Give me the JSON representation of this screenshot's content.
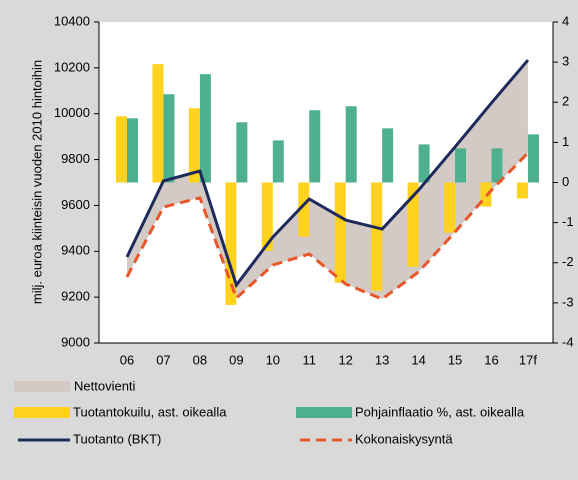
{
  "chart_data": {
    "type": "combo",
    "ylabel": "milj. euroa kiinteisin vuoden 2010 hintoihin",
    "categories": [
      "06",
      "07",
      "08",
      "09",
      "10",
      "11",
      "12",
      "13",
      "14",
      "15",
      "16",
      "17f"
    ],
    "ylim": [
      9000,
      10400
    ],
    "yticks": [
      9000,
      9200,
      9400,
      9600,
      9800,
      10000,
      10200,
      10400
    ],
    "y2lim": [
      -4,
      4
    ],
    "y2ticks": [
      -4,
      -3,
      -2,
      -1,
      0,
      1,
      2,
      3,
      4
    ],
    "area_name": "Nettovienti",
    "area_color": "#d3cac5",
    "series": [
      {
        "name": "Tuotantokuilu, ast. oikealla",
        "kind": "bar",
        "axis": "y2",
        "color": "#ffd21f",
        "values": [
          1.65,
          2.95,
          1.85,
          -3.05,
          -1.7,
          -1.35,
          -2.5,
          -2.7,
          -2.1,
          -1.25,
          -0.6,
          -0.4
        ]
      },
      {
        "name": "Pohjainflaatio %, ast. oikealla",
        "kind": "bar",
        "axis": "y2",
        "color": "#4fb08f",
        "values": [
          1.6,
          2.2,
          2.7,
          1.5,
          1.05,
          1.8,
          1.9,
          1.35,
          0.95,
          0.85,
          0.85,
          1.2
        ]
      },
      {
        "name": "Tuotanto (BKT)",
        "kind": "line",
        "color": "#1f2a5c",
        "values": [
          9375,
          9707,
          9750,
          9253,
          9462,
          9628,
          9536,
          9497,
          9667,
          9855,
          10047,
          10234
        ]
      },
      {
        "name": "Kokonaiskysyntä",
        "kind": "dashed",
        "color": "#e8562a",
        "values": [
          9288,
          9593,
          9633,
          9196,
          9340,
          9388,
          9257,
          9192,
          9310,
          9484,
          9667,
          9829
        ]
      }
    ]
  }
}
